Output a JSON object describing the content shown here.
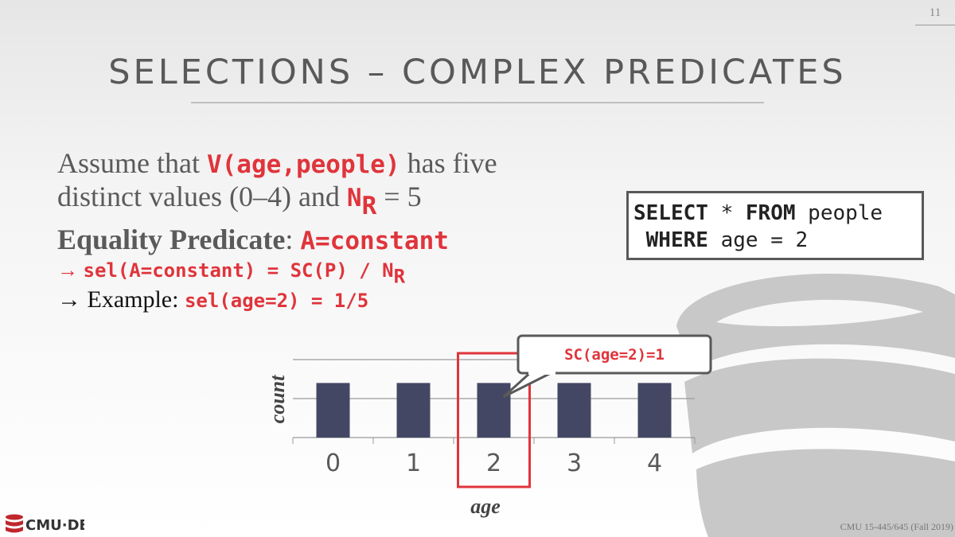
{
  "slide_number": "11",
  "title": "SELECTIONS – COMPLEX PREDICATES",
  "body": {
    "line1": {
      "prefix": "Assume that ",
      "code": "V(age,people)",
      "suffix": " has five"
    },
    "line2": {
      "prefix": "distinct values (0–4) and ",
      "code": "N",
      "code_sub": "R",
      "suffix": " = 5"
    },
    "line3": {
      "label": "Equality Predicate",
      "colon": ": ",
      "code": "A=constant"
    },
    "line4": {
      "arrow": "→ ",
      "code": "sel(A=constant) = SC(P) / N",
      "code_sub": "R"
    },
    "line5": {
      "arrow": "→ ",
      "text": "Example: ",
      "code": "sel(age=2) = 1/5"
    }
  },
  "sql": {
    "line1_kw1": "SELECT",
    "line1_mid": " * ",
    "line1_kw2": "FROM",
    "line1_rest": " people",
    "line2_indent": " ",
    "line2_kw": "WHERE",
    "line2_rest": " age = 2"
  },
  "chart_data": {
    "type": "bar",
    "categories": [
      "0",
      "1",
      "2",
      "3",
      "4"
    ],
    "values": [
      1,
      1,
      1,
      1,
      1
    ],
    "xlabel": "age",
    "ylabel": "count",
    "ylim": [
      0,
      2
    ],
    "grid": true,
    "highlight_category": "2",
    "callout": "SC(age=2)=1",
    "colors": {
      "bar": "#444764",
      "highlight": "#e0343b",
      "grid": "#9a9a9a"
    }
  },
  "logo": {
    "text": "CMU·DB",
    "icon": "database-icon",
    "color": "#c0272d"
  },
  "footer": "CMU 15-445/645 (Fall 2019)"
}
